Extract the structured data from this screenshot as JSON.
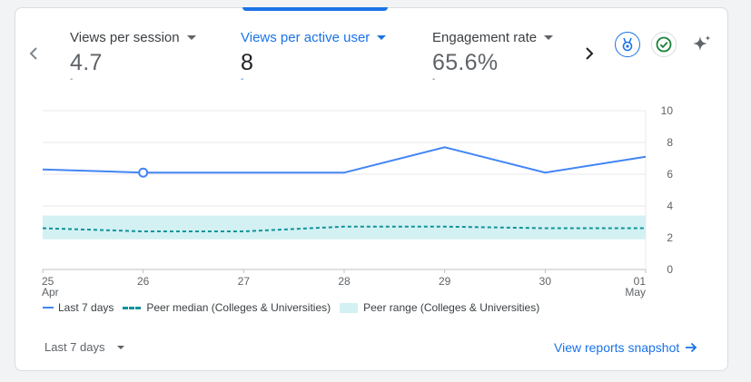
{
  "metrics": [
    {
      "label": "Views per session",
      "value": "4.7",
      "change": "-",
      "active": false
    },
    {
      "label": "Views per active user",
      "value": "8",
      "change": "-",
      "active": true
    },
    {
      "label": "Engagement rate",
      "value": "65.6%",
      "change": "-",
      "active": false
    }
  ],
  "icons": {
    "prev": "chevron-left-icon",
    "next": "chevron-right-icon",
    "benchmark": "benchmark-badge-icon",
    "check": "check-circle-icon",
    "insights": "sparkle-icon"
  },
  "colors": {
    "accent": "#1a73e8",
    "series_line": "#4285f4",
    "peer_median": "#12939a",
    "peer_range": "#d3f1f3",
    "check": "#188038"
  },
  "chart_data": {
    "type": "line",
    "x": [
      "25 Apr",
      "26",
      "27",
      "28",
      "29",
      "30",
      "01 May"
    ],
    "x_tick_labels": [
      {
        "day": "25",
        "month": "Apr"
      },
      {
        "day": "26",
        "month": ""
      },
      {
        "day": "27",
        "month": ""
      },
      {
        "day": "28",
        "month": ""
      },
      {
        "day": "29",
        "month": ""
      },
      {
        "day": "30",
        "month": ""
      },
      {
        "day": "01",
        "month": "May"
      }
    ],
    "y_ticks": [
      "0",
      "2",
      "4",
      "6",
      "8",
      "10"
    ],
    "ylim": [
      0,
      10
    ],
    "y_axis_side": "right",
    "grid": true,
    "series": [
      {
        "name": "Last 7 days",
        "style": "line",
        "values": [
          6.3,
          6.1,
          6.1,
          6.1,
          7.7,
          6.1,
          7.1
        ]
      },
      {
        "name": "Peer median (Colleges & Universities)",
        "style": "dashed",
        "values": [
          2.6,
          2.4,
          2.4,
          2.7,
          2.7,
          2.6,
          2.6
        ]
      },
      {
        "name": "Peer range (Colleges & Universities)",
        "style": "band",
        "lower": [
          1.9,
          1.9,
          1.9,
          1.9,
          1.9,
          1.9,
          1.9
        ],
        "upper": [
          3.4,
          3.4,
          3.4,
          3.4,
          3.4,
          3.4,
          3.4
        ]
      }
    ],
    "highlighted_point_index": 1
  },
  "legend": [
    {
      "label": "Last 7 days",
      "kind": "line"
    },
    {
      "label": "Peer median (Colleges & Universities)",
      "kind": "dashed"
    },
    {
      "label": "Peer range (Colleges & Universities)",
      "kind": "band"
    }
  ],
  "footer": {
    "date_range": "Last 7 days",
    "snapshot_link": "View reports snapshot"
  }
}
